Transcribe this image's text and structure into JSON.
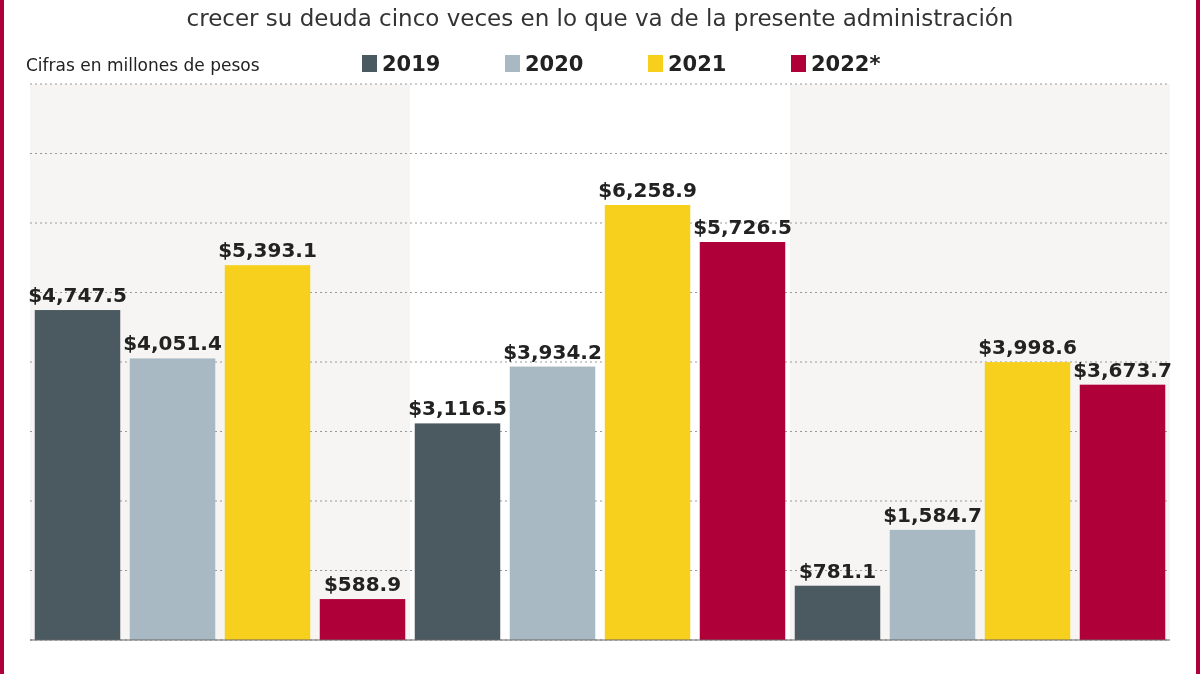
{
  "chart_data": {
    "type": "bar",
    "title": "crecer su deuda cinco veces en lo que va de la presente administración",
    "subtitle": "Cifras en millones de pesos",
    "categories": [
      null,
      null,
      null
    ],
    "series": [
      {
        "name": "2019",
        "color": "#4a5a60",
        "values": [
          4747.5,
          3116.5,
          781.1
        ],
        "value_labels": [
          "$4,747.5",
          "$3,116.5",
          "$781.1"
        ]
      },
      {
        "name": "2020",
        "color": "#a9b9c3",
        "values": [
          4051.4,
          3934.2,
          1584.7
        ],
        "value_labels": [
          "$4,051.4",
          "$3,934.2",
          "$1,584.7"
        ]
      },
      {
        "name": "2021",
        "color": "#f6d01c",
        "values": [
          5393.1,
          6258.9,
          3998.6
        ],
        "value_labels": [
          "$5,393.1",
          "$6,258.9",
          "$3,998.6"
        ]
      },
      {
        "name": "2022*",
        "color": "#b0003a",
        "values": [
          588.9,
          5726.5,
          3673.7
        ],
        "value_labels": [
          "$588.9",
          "$5,726.5",
          "$3,673.7"
        ]
      }
    ],
    "ylim": [
      0,
      8000
    ],
    "yticks": [
      {
        "value": 0,
        "label": null
      },
      {
        "value": 1000,
        "label": null
      },
      {
        "value": 2000,
        "label": null
      },
      {
        "value": 3000,
        "label": null
      },
      {
        "value": 4000,
        "label": null
      },
      {
        "value": 5000,
        "label": null
      },
      {
        "value": 6000,
        "label": null
      },
      {
        "value": 7000,
        "label": null
      },
      {
        "value": 8000,
        "label": null
      }
    ],
    "grid": true,
    "legend": "top"
  }
}
